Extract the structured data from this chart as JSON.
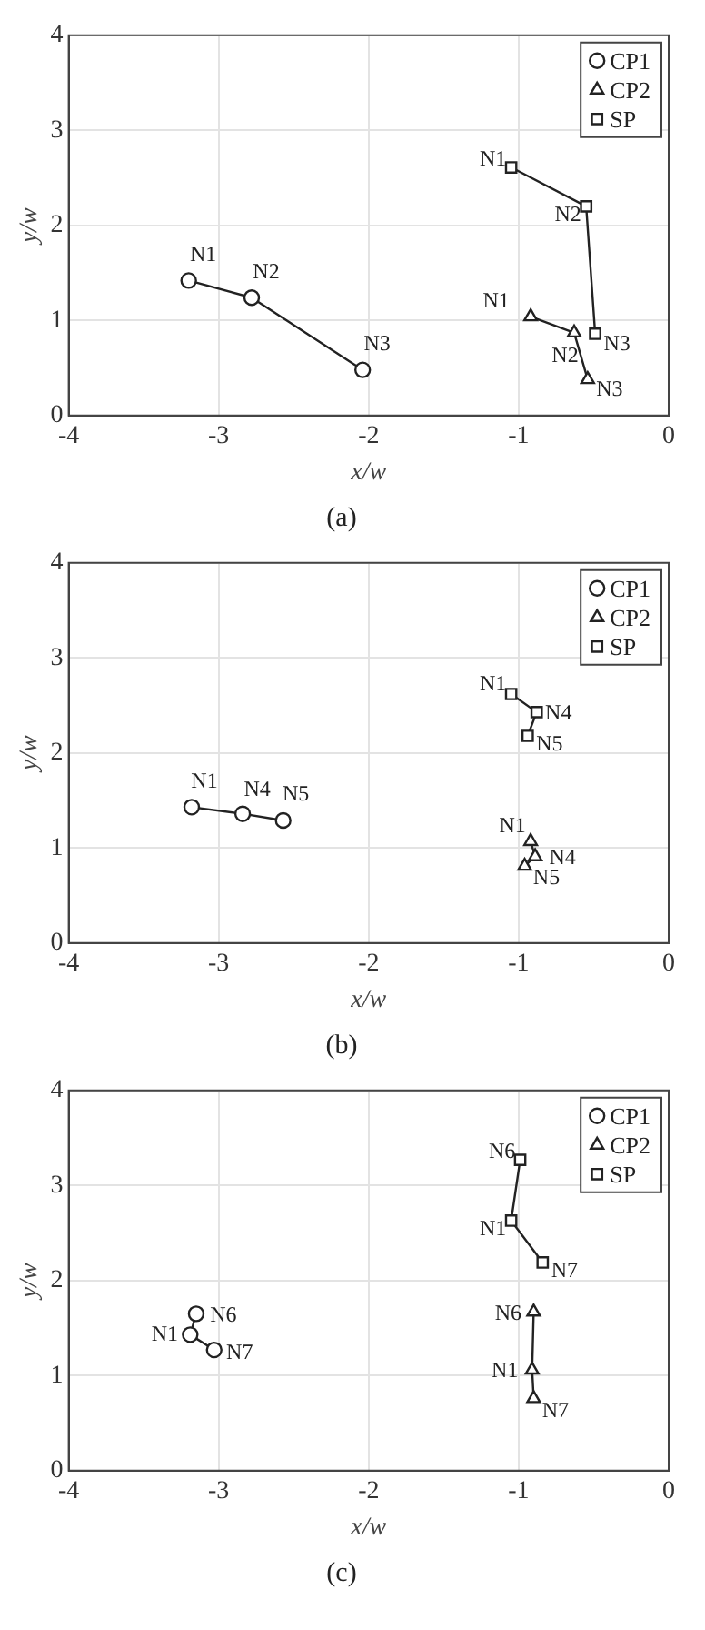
{
  "chart_data": [
    {
      "type": "line",
      "title": "(a)",
      "xlabel": "x/w",
      "ylabel": "y/w",
      "xlim": [
        -4,
        0
      ],
      "xticks": [
        -4,
        -3,
        -2,
        -1,
        0
      ],
      "ylim": [
        0,
        4
      ],
      "yticks": [
        0,
        1,
        2,
        3,
        4
      ],
      "grid": true,
      "legend": "top right",
      "line_style": "solid",
      "series": [
        {
          "name": "CP1",
          "color": "#222222",
          "marker": "circle",
          "x": [
            -3.2,
            -2.78,
            -2.04
          ],
          "values": [
            1.42,
            1.24,
            0.48
          ]
        },
        {
          "name": "CP2",
          "color": "#222222",
          "marker": "triangle",
          "x": [
            -0.92,
            -0.63,
            -0.54
          ],
          "values": [
            1.04,
            0.87,
            0.38
          ]
        },
        {
          "name": "SP",
          "color": "#222222",
          "marker": "square",
          "x": [
            -1.05,
            -0.55,
            -0.49
          ],
          "values": [
            2.61,
            2.2,
            0.86
          ]
        }
      ],
      "annotations": [
        {
          "text": "N1",
          "x": -3.2,
          "y": 1.42
        },
        {
          "text": "N2",
          "x": -2.78,
          "y": 1.24
        },
        {
          "text": "N3",
          "x": -2.04,
          "y": 0.48
        },
        {
          "text": "N1",
          "x": -0.92,
          "y": 1.04
        },
        {
          "text": "N2",
          "x": -0.63,
          "y": 0.87
        },
        {
          "text": "N3",
          "x": -0.54,
          "y": 0.38
        },
        {
          "text": "N1",
          "x": -1.05,
          "y": 2.61
        },
        {
          "text": "N2",
          "x": -0.55,
          "y": 2.2
        },
        {
          "text": "N3",
          "x": -0.49,
          "y": 0.86
        }
      ]
    },
    {
      "type": "line",
      "title": "(b)",
      "xlabel": "x/w",
      "ylabel": "y/w",
      "xlim": [
        -4,
        0
      ],
      "xticks": [
        -4,
        -3,
        -2,
        -1,
        0
      ],
      "ylim": [
        0,
        4
      ],
      "yticks": [
        0,
        1,
        2,
        3,
        4
      ],
      "grid": true,
      "legend": "top right",
      "line_style": "solid",
      "series": [
        {
          "name": "CP1",
          "color": "#222222",
          "marker": "circle",
          "x": [
            -3.18,
            -2.84,
            -2.57
          ],
          "values": [
            1.43,
            1.36,
            1.29
          ]
        },
        {
          "name": "CP2",
          "color": "#222222",
          "marker": "triangle",
          "x": [
            -0.92,
            -0.89,
            -0.96
          ],
          "values": [
            1.07,
            0.91,
            0.81
          ]
        },
        {
          "name": "SP",
          "color": "#222222",
          "marker": "square",
          "x": [
            -1.05,
            -0.88,
            -0.94
          ],
          "values": [
            2.62,
            2.43,
            2.18
          ]
        }
      ],
      "annotations": [
        {
          "text": "N1",
          "x": -3.18,
          "y": 1.43
        },
        {
          "text": "N4",
          "x": -2.84,
          "y": 1.36
        },
        {
          "text": "N5",
          "x": -2.57,
          "y": 1.29
        },
        {
          "text": "N1",
          "x": -0.92,
          "y": 1.07
        },
        {
          "text": "N4",
          "x": -0.89,
          "y": 0.91
        },
        {
          "text": "N5",
          "x": -0.96,
          "y": 0.81
        },
        {
          "text": "N1",
          "x": -1.05,
          "y": 2.62
        },
        {
          "text": "N4",
          "x": -0.88,
          "y": 2.43
        },
        {
          "text": "N5",
          "x": -0.94,
          "y": 2.18
        }
      ]
    },
    {
      "type": "line",
      "title": "(c)",
      "xlabel": "x/w",
      "ylabel": "y/w",
      "xlim": [
        -4,
        0
      ],
      "xticks": [
        -4,
        -3,
        -2,
        -1,
        0
      ],
      "ylim": [
        0,
        4
      ],
      "yticks": [
        0,
        1,
        2,
        3,
        4
      ],
      "grid": true,
      "legend": "top right",
      "line_style": "solid",
      "series": [
        {
          "name": "CP1",
          "color": "#222222",
          "marker": "circle",
          "x": [
            -3.15,
            -3.19,
            -3.03
          ],
          "values": [
            1.65,
            1.43,
            1.27
          ]
        },
        {
          "name": "CP2",
          "color": "#222222",
          "marker": "triangle",
          "x": [
            -0.9,
            -0.91,
            -0.9
          ],
          "values": [
            1.67,
            1.06,
            0.76
          ]
        },
        {
          "name": "SP",
          "color": "#222222",
          "marker": "square",
          "x": [
            -0.99,
            -1.05,
            -0.84
          ],
          "values": [
            3.27,
            2.63,
            2.19
          ]
        }
      ],
      "annotations": [
        {
          "text": "N6",
          "x": -3.15,
          "y": 1.65
        },
        {
          "text": "N1",
          "x": -3.19,
          "y": 1.43
        },
        {
          "text": "N7",
          "x": -3.03,
          "y": 1.27
        },
        {
          "text": "N6",
          "x": -0.9,
          "y": 1.67
        },
        {
          "text": "N1",
          "x": -0.91,
          "y": 1.06
        },
        {
          "text": "N7",
          "x": -0.9,
          "y": 0.76
        },
        {
          "text": "N6",
          "x": -0.99,
          "y": 3.27
        },
        {
          "text": "N1",
          "x": -1.05,
          "y": 2.63
        },
        {
          "text": "N7",
          "x": -0.84,
          "y": 2.19
        }
      ]
    }
  ]
}
